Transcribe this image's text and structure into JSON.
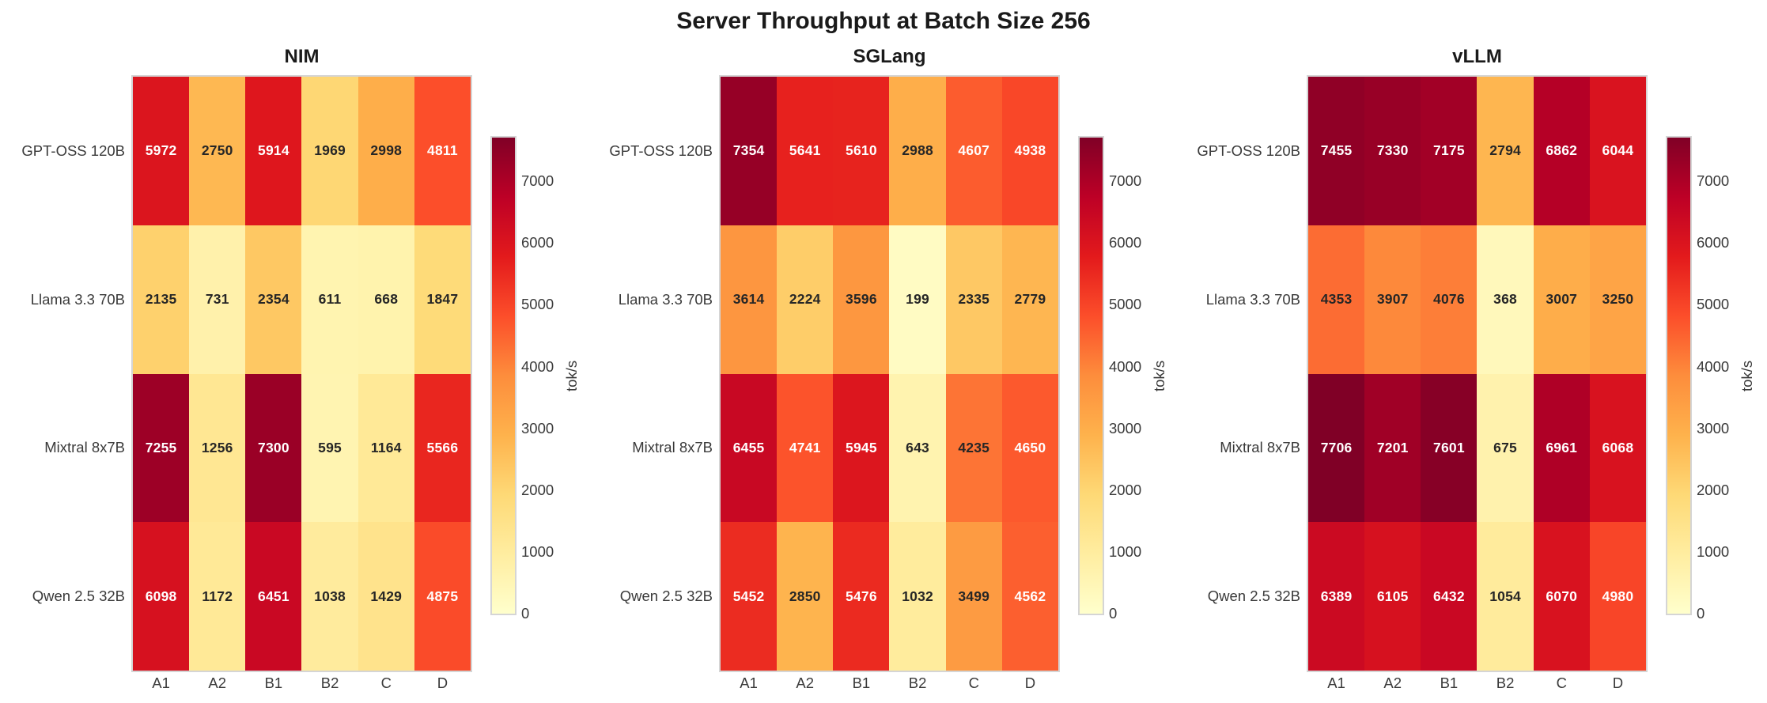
{
  "figure": {
    "title": "Server Throughput at Batch Size 256",
    "colorbar_label": "tok/s",
    "colorbar_ticks": [
      0,
      1000,
      2000,
      3000,
      4000,
      5000,
      6000,
      7000
    ],
    "vmin": 0,
    "vmax": 7706,
    "colormap": "YlOrRd",
    "colormap_hex": [
      "#ffffcc",
      "#ffeda0",
      "#fed976",
      "#feb24c",
      "#fd8d3c",
      "#fc4e2a",
      "#e31a1c",
      "#bd0026",
      "#800026"
    ],
    "annotation_text_light": "#ffffff",
    "annotation_text_dark": "#262626"
  },
  "chart_data": [
    {
      "type": "heatmap",
      "title": "NIM",
      "x_categories": [
        "A1",
        "A2",
        "B1",
        "B2",
        "C",
        "D"
      ],
      "y_categories": [
        "GPT-OSS 120B",
        "Llama 3.3 70B",
        "Mixtral 8x7B",
        "Qwen 2.5 32B"
      ],
      "values": [
        [
          5972,
          2750,
          5914,
          1969,
          2998,
          4811
        ],
        [
          2135,
          731,
          2354,
          611,
          668,
          1847
        ],
        [
          7255,
          1256,
          7300,
          595,
          1164,
          5566
        ],
        [
          6098,
          1172,
          6451,
          1038,
          1429,
          4875
        ]
      ],
      "colorbar_label": "tok/s"
    },
    {
      "type": "heatmap",
      "title": "SGLang",
      "x_categories": [
        "A1",
        "A2",
        "B1",
        "B2",
        "C",
        "D"
      ],
      "y_categories": [
        "GPT-OSS 120B",
        "Llama 3.3 70B",
        "Mixtral 8x7B",
        "Qwen 2.5 32B"
      ],
      "values": [
        [
          7354,
          5641,
          5610,
          2988,
          4607,
          4938
        ],
        [
          3614,
          2224,
          3596,
          199,
          2335,
          2779
        ],
        [
          6455,
          4741,
          5945,
          643,
          4235,
          4650
        ],
        [
          5452,
          2850,
          5476,
          1032,
          3499,
          4562
        ]
      ],
      "colorbar_label": "tok/s"
    },
    {
      "type": "heatmap",
      "title": "vLLM",
      "x_categories": [
        "A1",
        "A2",
        "B1",
        "B2",
        "C",
        "D"
      ],
      "y_categories": [
        "GPT-OSS 120B",
        "Llama 3.3 70B",
        "Mixtral 8x7B",
        "Qwen 2.5 32B"
      ],
      "values": [
        [
          7455,
          7330,
          7175,
          2794,
          6862,
          6044
        ],
        [
          4353,
          3907,
          4076,
          368,
          3007,
          3250
        ],
        [
          7706,
          7201,
          7601,
          675,
          6961,
          6068
        ],
        [
          6389,
          6105,
          6432,
          1054,
          6070,
          4980
        ]
      ],
      "colorbar_label": "tok/s"
    }
  ]
}
